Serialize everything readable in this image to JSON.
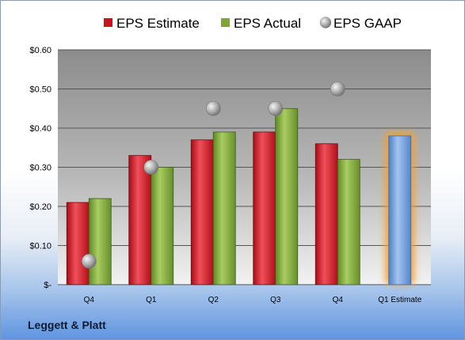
{
  "chart_data": {
    "type": "bar",
    "company": "Leggett & Platt",
    "categories": [
      "Q4",
      "Q1",
      "Q2",
      "Q3",
      "Q4",
      "Q1 Estimate"
    ],
    "series": [
      {
        "name": "EPS Estimate",
        "type": "bar",
        "color": "#c8141e",
        "values": [
          0.21,
          0.33,
          0.37,
          0.39,
          0.36,
          null
        ]
      },
      {
        "name": "EPS Actual",
        "type": "bar",
        "color": "#7ea43c",
        "values": [
          0.22,
          0.3,
          0.39,
          0.45,
          0.32,
          null
        ]
      },
      {
        "name": "EPS GAAP",
        "type": "scatter",
        "color": "#a8a8a8",
        "values": [
          0.06,
          0.3,
          0.45,
          0.45,
          0.5,
          null
        ]
      },
      {
        "name": "",
        "type": "bar",
        "color": "#6c9bd8",
        "values": [
          null,
          null,
          null,
          null,
          null,
          0.38
        ],
        "highlight": "glow-orange"
      }
    ],
    "y_ticks": [
      {
        "value": 0,
        "label": "$-"
      },
      {
        "value": 0.1,
        "label": "$0.10"
      },
      {
        "value": 0.2,
        "label": "$0.20"
      },
      {
        "value": 0.3,
        "label": "$0.30"
      },
      {
        "value": 0.4,
        "label": "$0.40"
      },
      {
        "value": 0.5,
        "label": "$0.50"
      },
      {
        "value": 0.6,
        "label": "$0.60"
      }
    ],
    "ylim": [
      0,
      0.6
    ],
    "grid": true,
    "legend": "top"
  }
}
